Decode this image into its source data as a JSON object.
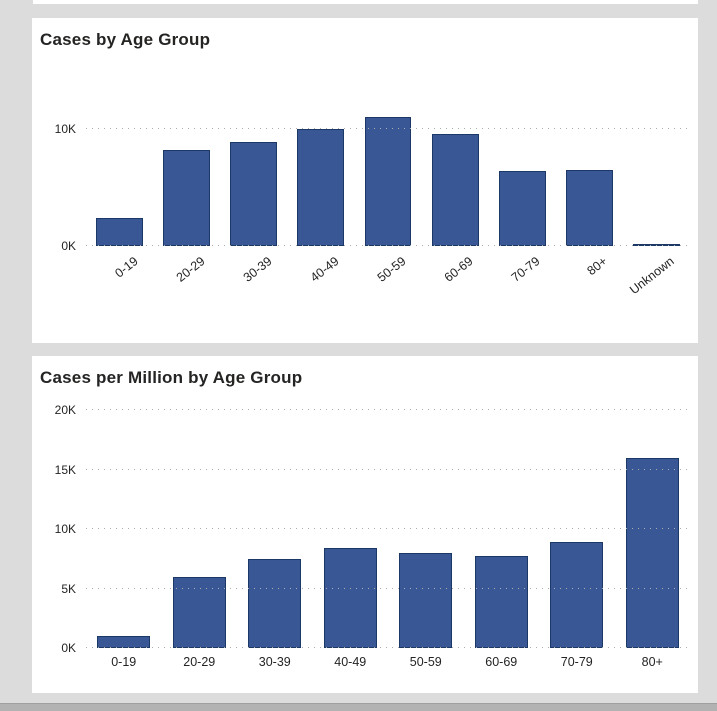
{
  "page": {
    "background_color": "#dcdcdc",
    "card_color": "#ffffff",
    "bottom_bar_color": "#b2b2b2"
  },
  "chart_data": [
    {
      "type": "bar",
      "title": "Cases by Age Group",
      "categories": [
        "0-19",
        "20-29",
        "30-39",
        "40-49",
        "50-59",
        "60-69",
        "70-79",
        "80+",
        "Unknown"
      ],
      "values": [
        2400,
        8200,
        8900,
        10000,
        11000,
        9600,
        6400,
        6500,
        150
      ],
      "xlabel": "",
      "ylabel": "",
      "ylim": [
        0,
        13000
      ],
      "yticks": [
        0,
        10000
      ],
      "ytick_labels": [
        "0K",
        "10K"
      ],
      "grid": "horizontal-dotted",
      "legend": "none",
      "x_label_rotation_deg": -38,
      "bar_color": "#3a5795",
      "bar_border_color": "#1b3866"
    },
    {
      "type": "bar",
      "title": "Cases per Million by Age Group",
      "categories": [
        "0-19",
        "20-29",
        "30-39",
        "40-49",
        "50-59",
        "60-69",
        "70-79",
        "80+"
      ],
      "values": [
        1000,
        6000,
        7500,
        8400,
        8000,
        7700,
        8900,
        16000
      ],
      "xlabel": "",
      "ylabel": "",
      "ylim": [
        0,
        20000
      ],
      "yticks": [
        0,
        5000,
        10000,
        15000,
        20000
      ],
      "ytick_labels": [
        "0K",
        "5K",
        "10K",
        "15K",
        "20K"
      ],
      "grid": "horizontal-dotted",
      "legend": "none",
      "x_label_rotation_deg": 0,
      "bar_color": "#3a5795",
      "bar_border_color": "#1b3866"
    }
  ]
}
